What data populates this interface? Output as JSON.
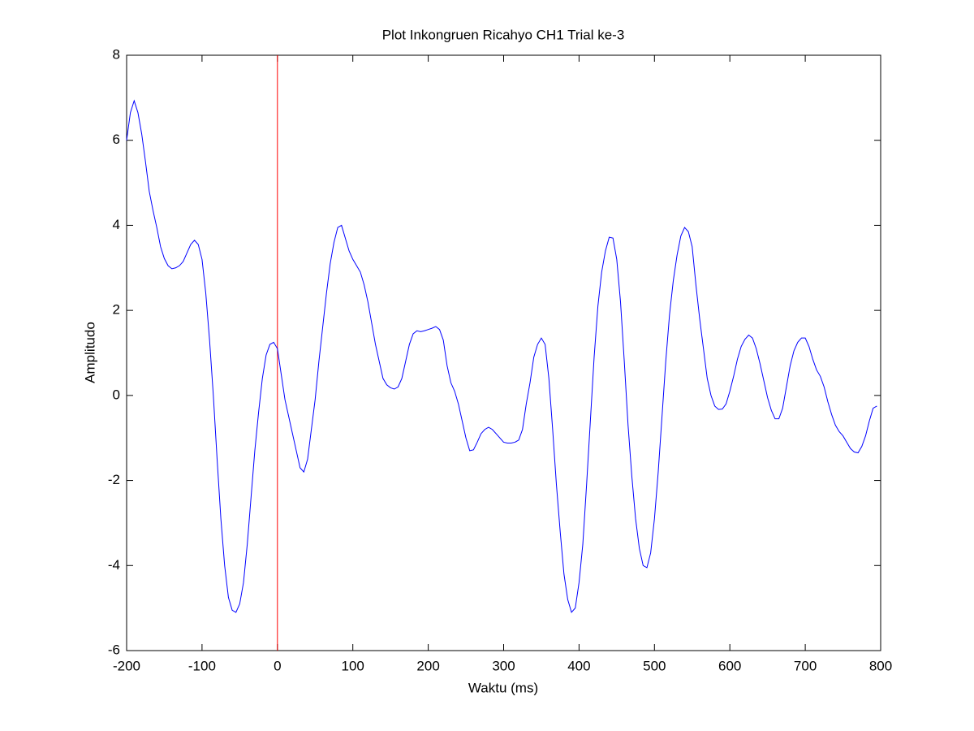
{
  "chart_data": {
    "type": "line",
    "title": "Plot Inkongruen Ricahyo CH1 Trial ke-3",
    "x_label": "Waktu (ms)",
    "y_label": "Amplitudo",
    "xlim": [
      -200,
      800
    ],
    "xticks": [
      -200,
      -100,
      0,
      100,
      200,
      300,
      400,
      500,
      600,
      700,
      800
    ],
    "ylim": [
      -6,
      8
    ],
    "yticks": [
      -6,
      -4,
      -2,
      0,
      2,
      4,
      6,
      8
    ],
    "grid": false,
    "vline": {
      "x": 0,
      "color": "#ff0000"
    },
    "x": [
      -200,
      -195,
      -190,
      -185,
      -180,
      -175,
      -170,
      -165,
      -160,
      -155,
      -150,
      -145,
      -140,
      -135,
      -130,
      -125,
      -120,
      -115,
      -110,
      -105,
      -100,
      -95,
      -90,
      -85,
      -80,
      -75,
      -70,
      -65,
      -60,
      -55,
      -50,
      -45,
      -40,
      -35,
      -30,
      -25,
      -20,
      -15,
      -10,
      -5,
      0,
      5,
      10,
      15,
      20,
      25,
      30,
      35,
      40,
      45,
      50,
      55,
      60,
      65,
      70,
      75,
      80,
      85,
      90,
      95,
      100,
      105,
      110,
      115,
      120,
      125,
      130,
      135,
      140,
      145,
      150,
      155,
      160,
      165,
      170,
      175,
      180,
      185,
      190,
      195,
      200,
      205,
      210,
      215,
      220,
      225,
      230,
      235,
      240,
      245,
      250,
      255,
      260,
      265,
      270,
      275,
      280,
      285,
      290,
      295,
      300,
      305,
      310,
      315,
      320,
      325,
      330,
      335,
      340,
      345,
      350,
      355,
      360,
      365,
      370,
      375,
      380,
      385,
      390,
      395,
      400,
      405,
      410,
      415,
      420,
      425,
      430,
      435,
      440,
      445,
      450,
      455,
      460,
      465,
      470,
      475,
      480,
      485,
      490,
      495,
      500,
      505,
      510,
      515,
      520,
      525,
      530,
      535,
      540,
      545,
      550,
      555,
      560,
      565,
      570,
      575,
      580,
      585,
      590,
      595,
      600,
      605,
      610,
      615,
      620,
      625,
      630,
      635,
      640,
      645,
      650,
      655,
      660,
      665,
      670,
      675,
      680,
      685,
      690,
      695,
      700,
      705,
      710,
      715,
      720,
      725,
      730,
      735,
      740,
      745,
      750,
      755,
      760,
      765,
      770,
      775,
      780,
      785,
      790,
      795
    ],
    "series": [
      {
        "name": "CH1",
        "color": "#0000ff",
        "values": [
          6.0,
          6.65,
          6.93,
          6.65,
          6.15,
          5.5,
          4.8,
          4.35,
          3.95,
          3.5,
          3.22,
          3.05,
          2.98,
          3.0,
          3.05,
          3.15,
          3.35,
          3.55,
          3.65,
          3.55,
          3.2,
          2.4,
          1.3,
          0.0,
          -1.5,
          -2.9,
          -4.0,
          -4.75,
          -5.05,
          -5.1,
          -4.9,
          -4.4,
          -3.5,
          -2.4,
          -1.3,
          -0.4,
          0.4,
          0.95,
          1.2,
          1.25,
          1.1,
          0.5,
          -0.1,
          -0.5,
          -0.9,
          -1.3,
          -1.7,
          -1.8,
          -1.5,
          -0.8,
          -0.1,
          0.8,
          1.6,
          2.4,
          3.1,
          3.6,
          3.95,
          4.0,
          3.7,
          3.4,
          3.2,
          3.05,
          2.9,
          2.6,
          2.2,
          1.7,
          1.2,
          0.8,
          0.4,
          0.25,
          0.18,
          0.15,
          0.2,
          0.4,
          0.8,
          1.2,
          1.45,
          1.52,
          1.5,
          1.52,
          1.55,
          1.58,
          1.62,
          1.55,
          1.3,
          0.7,
          0.3,
          0.1,
          -0.2,
          -0.6,
          -1.0,
          -1.3,
          -1.28,
          -1.1,
          -0.9,
          -0.8,
          -0.75,
          -0.8,
          -0.9,
          -1.0,
          -1.1,
          -1.12,
          -1.12,
          -1.1,
          -1.05,
          -0.8,
          -0.2,
          0.3,
          0.9,
          1.2,
          1.35,
          1.2,
          0.4,
          -0.8,
          -2.1,
          -3.2,
          -4.2,
          -4.8,
          -5.1,
          -5.0,
          -4.4,
          -3.5,
          -2.1,
          -0.6,
          0.9,
          2.1,
          2.9,
          3.4,
          3.72,
          3.7,
          3.2,
          2.2,
          0.8,
          -0.7,
          -1.9,
          -2.9,
          -3.6,
          -4.0,
          -4.05,
          -3.7,
          -2.9,
          -1.8,
          -0.5,
          0.8,
          1.9,
          2.7,
          3.3,
          3.75,
          3.95,
          3.85,
          3.5,
          2.6,
          1.8,
          1.1,
          0.4,
          0.0,
          -0.25,
          -0.33,
          -0.32,
          -0.2,
          0.1,
          0.45,
          0.85,
          1.15,
          1.32,
          1.42,
          1.35,
          1.1,
          0.75,
          0.35,
          -0.05,
          -0.35,
          -0.55,
          -0.55,
          -0.3,
          0.2,
          0.7,
          1.05,
          1.25,
          1.35,
          1.35,
          1.15,
          0.85,
          0.6,
          0.45,
          0.2,
          -0.15,
          -0.45,
          -0.7,
          -0.85,
          -0.95,
          -1.1,
          -1.25,
          -1.33,
          -1.35,
          -1.2,
          -0.95,
          -0.6,
          -0.3,
          -0.25
        ]
      }
    ]
  }
}
